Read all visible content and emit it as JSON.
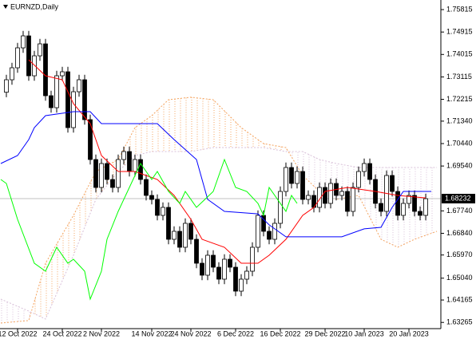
{
  "chart_data": {
    "type": "candlestick",
    "title": "EURNZD,Daily",
    "ylim": [
      1.63016,
      1.762
    ],
    "yticks": [
      1.75815,
      1.74915,
      1.74015,
      1.73115,
      1.72215,
      {
        "value": 1.7134,
        "label": "1.71340"
      },
      {
        "value": 1.7044,
        "label": "1.70440"
      },
      {
        "value": 1.6954,
        "label": "1.69540"
      },
      {
        "value": 1.6774,
        "label": "1.67740"
      },
      {
        "value": 1.6684,
        "label": "1.66840"
      },
      {
        "value": 1.6597,
        "label": "1.65970"
      },
      {
        "value": 1.6504,
        "label": "1.65040"
      },
      1.64165,
      1.63265
    ],
    "xlim": [
      -1.14,
      77.71
    ],
    "xticks": [
      {
        "value": 2,
        "label": "12 Oct 2022"
      },
      {
        "value": 10,
        "label": "24 Oct 2022"
      },
      {
        "value": 17,
        "label": "2 Nov 2022"
      },
      {
        "value": 26,
        "label": "14 Nov 2022"
      },
      {
        "value": 33,
        "label": "24 Nov 2022"
      },
      {
        "value": 41,
        "label": "6 Dec 2022"
      },
      {
        "value": 49,
        "label": "16 Dec 2022"
      },
      {
        "value": 57,
        "label": "29 Dec 2022"
      },
      {
        "value": 64,
        "label": "10 Jan 2023"
      },
      {
        "value": 72,
        "label": "20 Jan 2023"
      }
    ],
    "last_price": 1.68232,
    "candles": {
      "up_color": "#ffffff",
      "down_color": "#000000",
      "open": [
        1.725,
        1.73,
        1.7348,
        1.7428,
        1.7476,
        1.7316,
        1.7396,
        1.7444,
        1.7236,
        1.7188,
        1.7316,
        1.7332,
        1.7108,
        1.7252,
        1.73,
        1.714,
        1.698,
        1.6868,
        1.6964,
        1.69,
        1.6868,
        1.698,
        1.7012,
        1.6932,
        1.698,
        1.69,
        1.6836,
        1.682,
        1.6756,
        1.6788,
        1.666,
        1.6692,
        1.6628,
        1.6724,
        1.666,
        1.6564,
        1.6516,
        1.6596,
        1.6548,
        1.65,
        1.658,
        1.6548,
        1.6452,
        1.65,
        1.6532,
        1.6628,
        1.6756,
        1.6692,
        1.666,
        1.6724,
        1.6852,
        1.6948,
        1.6884,
        1.6932,
        1.682,
        1.6836,
        1.6788,
        1.6868,
        1.6804,
        1.6884,
        1.6836,
        1.6852,
        1.6772,
        1.6868,
        1.6932,
        1.6964,
        1.69,
        1.6804,
        1.6772,
        1.6916,
        1.6852,
        1.6756,
        1.6804,
        1.6836,
        1.6772,
        1.6756
      ],
      "high": [
        1.732,
        1.7368,
        1.7448,
        1.7496,
        1.7496,
        1.7416,
        1.7464,
        1.7464,
        1.7256,
        1.7336,
        1.7352,
        1.7352,
        1.7272,
        1.732,
        1.732,
        1.716,
        1.7,
        1.6984,
        1.6984,
        1.692,
        1.7,
        1.7032,
        1.7032,
        1.7,
        1.7,
        1.692,
        1.6856,
        1.684,
        1.6808,
        1.6808,
        1.6712,
        1.6712,
        1.6744,
        1.6744,
        1.668,
        1.6584,
        1.6616,
        1.6616,
        1.6568,
        1.66,
        1.66,
        1.6568,
        1.652,
        1.6552,
        1.6648,
        1.6776,
        1.6776,
        1.6712,
        1.6744,
        1.6872,
        1.6968,
        1.6968,
        1.6952,
        1.6952,
        1.6856,
        1.6856,
        1.6888,
        1.6888,
        1.6904,
        1.6904,
        1.6872,
        1.6872,
        1.6888,
        1.6952,
        1.6984,
        1.6984,
        1.692,
        1.6824,
        1.6936,
        1.6936,
        1.6872,
        1.6824,
        1.6856,
        1.6856,
        1.6792,
        1.6843
      ],
      "low": [
        1.723,
        1.728,
        1.7328,
        1.7408,
        1.7296,
        1.7296,
        1.7376,
        1.7216,
        1.7168,
        1.7168,
        1.7296,
        1.7088,
        1.7088,
        1.7232,
        1.712,
        1.696,
        1.6848,
        1.6848,
        1.688,
        1.6848,
        1.6848,
        1.696,
        1.6912,
        1.6912,
        1.688,
        1.6816,
        1.68,
        1.6736,
        1.6736,
        1.664,
        1.664,
        1.6608,
        1.6608,
        1.664,
        1.6544,
        1.6496,
        1.6496,
        1.6528,
        1.648,
        1.648,
        1.6528,
        1.6432,
        1.6432,
        1.648,
        1.6512,
        1.6608,
        1.6672,
        1.664,
        1.664,
        1.6704,
        1.6832,
        1.6864,
        1.6864,
        1.68,
        1.68,
        1.6768,
        1.6768,
        1.6784,
        1.6784,
        1.6816,
        1.6816,
        1.6752,
        1.6752,
        1.6848,
        1.6912,
        1.688,
        1.6784,
        1.6752,
        1.6752,
        1.6832,
        1.6736,
        1.6736,
        1.6784,
        1.6752,
        1.6736,
        1.6736
      ],
      "close": [
        1.73,
        1.7348,
        1.7428,
        1.7476,
        1.7316,
        1.7396,
        1.7444,
        1.7236,
        1.7188,
        1.7316,
        1.7332,
        1.7108,
        1.7252,
        1.73,
        1.714,
        1.698,
        1.6868,
        1.6964,
        1.69,
        1.6868,
        1.698,
        1.7012,
        1.6932,
        1.698,
        1.69,
        1.6836,
        1.682,
        1.6756,
        1.6788,
        1.666,
        1.6692,
        1.6628,
        1.6724,
        1.666,
        1.6564,
        1.6516,
        1.6596,
        1.6548,
        1.65,
        1.658,
        1.6548,
        1.6452,
        1.65,
        1.6532,
        1.6628,
        1.6756,
        1.6692,
        1.666,
        1.6724,
        1.6852,
        1.6948,
        1.6884,
        1.6932,
        1.682,
        1.6836,
        1.6788,
        1.6868,
        1.6804,
        1.6884,
        1.6836,
        1.6852,
        1.6772,
        1.6868,
        1.6932,
        1.6964,
        1.69,
        1.6804,
        1.6772,
        1.6916,
        1.6852,
        1.6756,
        1.6804,
        1.6836,
        1.6772,
        1.6756,
        1.6823
      ]
    },
    "lines": [
      {
        "color": "#ff0000",
        "x": [
          4,
          7,
          10,
          12,
          15,
          17,
          20,
          23,
          27,
          30,
          33,
          35,
          39,
          42,
          45,
          47,
          50,
          53,
          55,
          57,
          61,
          66,
          70,
          75
        ],
        "values": [
          1.738,
          1.7316,
          1.73,
          1.7204,
          1.7124,
          1.6996,
          1.6932,
          1.6932,
          1.69,
          1.6836,
          1.674,
          1.666,
          1.6628,
          1.6564,
          1.6564,
          1.6596,
          1.666,
          1.6756,
          1.6788,
          1.6852,
          1.6868,
          1.6852,
          1.6836,
          1.6826
        ]
      },
      {
        "color": "#0000ff",
        "x": [
          -1,
          2,
          4,
          5,
          7,
          12,
          15,
          17,
          20,
          27,
          30,
          34,
          36,
          39,
          45,
          47,
          50,
          60,
          64,
          67,
          69,
          71,
          76
        ],
        "values": [
          1.6964,
          1.6996,
          1.706,
          1.7108,
          1.7156,
          1.7172,
          1.7172,
          1.7124,
          1.7124,
          1.7124,
          1.706,
          1.698,
          1.682,
          1.6772,
          1.6762,
          1.6718,
          1.667,
          1.667,
          1.6702,
          1.6708,
          1.6788,
          1.6852,
          1.6852
        ]
      },
      {
        "color": "#00ff00",
        "x": [
          -1,
          0,
          2,
          5,
          7,
          9,
          11,
          12,
          14,
          15,
          17,
          18,
          20,
          22,
          24,
          26,
          27,
          29,
          31,
          32,
          34,
          37,
          39,
          41,
          43,
          45,
          46,
          47,
          50,
          51,
          52
        ],
        "values": [
          1.69,
          1.6884,
          1.674,
          1.6564,
          1.6532,
          1.6628,
          1.6564,
          1.658,
          1.6532,
          1.642,
          1.6532,
          1.666,
          1.6772,
          1.6868,
          1.6964,
          1.69,
          1.6932,
          1.6852,
          1.6804,
          1.6852,
          1.6788,
          1.6852,
          1.698,
          1.6868,
          1.6852,
          1.6804,
          1.6756,
          1.6868,
          1.6772,
          1.6836,
          1.6804
        ]
      }
    ],
    "cloud": {
      "up_color": "#f4a460",
      "down_color": "#d8bfd8",
      "x": [
        -1,
        4,
        7,
        12,
        16,
        20,
        23,
        26,
        29,
        33,
        37,
        42,
        46,
        50,
        53,
        56,
        59,
        63,
        67,
        70,
        73,
        77
      ],
      "span_a": [
        1.6324,
        1.6334,
        1.6564,
        1.6756,
        1.6932,
        1.698,
        1.7108,
        1.7156,
        1.722,
        1.723,
        1.722,
        1.7108,
        1.7044,
        1.7028,
        1.6916,
        1.6852,
        1.682,
        1.6836,
        1.666,
        1.6628,
        1.666,
        1.6692
      ],
      "span_b": [
        1.642,
        1.6372,
        1.634,
        1.6596,
        1.682,
        1.6932,
        1.6996,
        1.7012,
        1.7012,
        1.7012,
        1.7028,
        1.7028,
        1.7028,
        1.7012,
        1.7012,
        1.698,
        1.6964,
        1.6948,
        1.6948,
        1.6948,
        1.6948,
        1.6948
      ]
    }
  }
}
